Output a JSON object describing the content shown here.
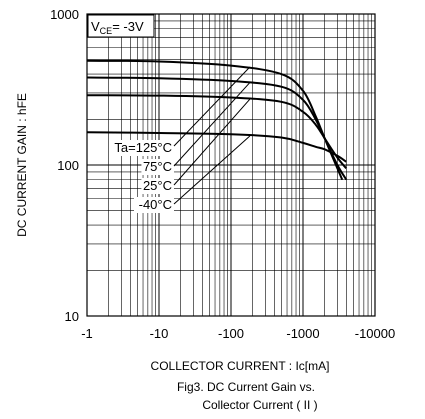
{
  "chart_data": {
    "type": "line",
    "x_scale": "log",
    "y_scale": "log",
    "xlim": [
      -1,
      -10000
    ],
    "ylim": [
      10,
      1000
    ],
    "x_ticks": [
      "-1",
      "-10",
      "-100",
      "-1000",
      "-10000"
    ],
    "y_ticks": [
      "10",
      "100",
      "1000"
    ],
    "grid": true,
    "xlabel": "COLLECTOR CURRENT : Ic[mA]",
    "ylabel": "DC CURRENT GAIN : hFE",
    "condition_label": "V_CE= -3V",
    "condition": {
      "prefix": "V",
      "subscript": "CE",
      "suffix": "= -3V"
    },
    "caption_line1": "Fig3. DC Current Gain vs.",
    "caption_line2": "Collector Current ( II )",
    "series": [
      {
        "name": "Ta=125°C",
        "x": [
          -1,
          -10,
          -100,
          -500,
          -1000,
          -1500,
          -2000,
          -3000,
          -3500
        ],
        "y": [
          490,
          485,
          455,
          400,
          310,
          210,
          150,
          95,
          80
        ]
      },
      {
        "name": "75°C",
        "x": [
          -1,
          -10,
          -100,
          -500,
          -1000,
          -1500,
          -2000,
          -3000,
          -4000
        ],
        "y": [
          380,
          375,
          360,
          330,
          270,
          200,
          150,
          100,
          80
        ]
      },
      {
        "name": "25°C",
        "x": [
          -1,
          -10,
          -100,
          -500,
          -1000,
          -1500,
          -2000,
          -3000,
          -4000
        ],
        "y": [
          290,
          288,
          280,
          262,
          225,
          185,
          150,
          112,
          95
        ]
      },
      {
        "name": "-40°C",
        "x": [
          -1,
          -10,
          -100,
          -500,
          -1000,
          -1500,
          -2000,
          -3000,
          -4000
        ],
        "y": [
          165,
          163,
          160,
          152,
          140,
          132,
          127,
          115,
          105
        ]
      }
    ]
  }
}
